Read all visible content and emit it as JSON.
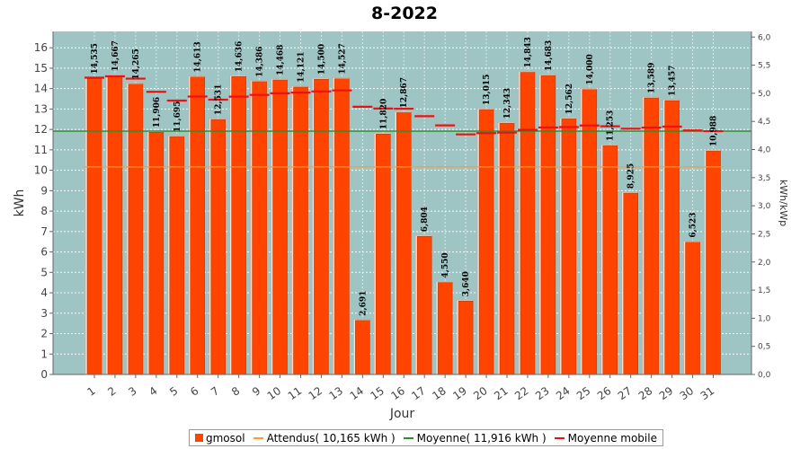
{
  "chart_data": {
    "type": "bar",
    "title": "8-2022",
    "xlabel": "Jour",
    "ylabel": "kWh",
    "y2label": "kWh/kWp",
    "ylim": [
      0,
      16.8
    ],
    "y2lim": [
      0,
      6.1
    ],
    "categories": [
      "1",
      "2",
      "3",
      "4",
      "5",
      "6",
      "7",
      "8",
      "9",
      "10",
      "11",
      "12",
      "13",
      "14",
      "15",
      "16",
      "17",
      "18",
      "19",
      "20",
      "21",
      "22",
      "23",
      "24",
      "25",
      "26",
      "27",
      "28",
      "29",
      "30",
      "31"
    ],
    "value_labels": [
      "14,535",
      "14,667",
      "14,265",
      "11,906",
      "11,695",
      "14,613",
      "12,531",
      "14,636",
      "14,386",
      "14,468",
      "14,121",
      "14,500",
      "14,527",
      "2,691",
      "11,820",
      "12,867",
      "6,804",
      "4,550",
      "3,640",
      "13,015",
      "12,343",
      "14,843",
      "14,683",
      "12,562",
      "14,000",
      "11,253",
      "8,925",
      "13,589",
      "13,457",
      "6,523",
      "10,988"
    ],
    "series": [
      {
        "name": "gmosol",
        "kind": "bar",
        "color": "#ff4400",
        "values": [
          14.535,
          14.667,
          14.265,
          11.906,
          11.695,
          14.613,
          12.531,
          14.636,
          14.386,
          14.468,
          14.121,
          14.5,
          14.527,
          2.691,
          11.82,
          12.867,
          6.804,
          4.55,
          3.64,
          13.015,
          12.343,
          14.843,
          14.683,
          12.562,
          14.0,
          11.253,
          8.925,
          13.589,
          13.457,
          6.523,
          10.988
        ]
      },
      {
        "name": "Attendus( 10,165 kWh )",
        "kind": "marker",
        "color": "#ff9933",
        "values": [
          10.165,
          10.165,
          10.165,
          10.165,
          10.165,
          10.165,
          10.165,
          10.165,
          10.165,
          10.165,
          10.165,
          10.165,
          10.165,
          10.165,
          10.165,
          10.165,
          10.165,
          10.165,
          10.165,
          10.165,
          10.165,
          10.165,
          10.165,
          10.165,
          10.165,
          10.165,
          10.165,
          10.165,
          10.165,
          10.165,
          10.165
        ]
      },
      {
        "name": "Moyenne( 11,916 kWh )",
        "kind": "hline",
        "color": "#2e8b2e",
        "value": 11.916
      },
      {
        "name": "Moyenne mobile",
        "kind": "marker",
        "color": "#ee1111",
        "values": [
          14.535,
          14.601,
          14.489,
          13.843,
          13.413,
          13.613,
          13.458,
          13.605,
          13.692,
          13.77,
          13.803,
          13.861,
          13.912,
          13.11,
          13.023,
          13.014,
          12.649,
          12.199,
          11.756,
          11.819,
          11.844,
          11.98,
          12.097,
          12.117,
          12.193,
          12.156,
          12.036,
          12.092,
          12.139,
          11.952,
          11.916
        ]
      }
    ],
    "xticks": [
      "1",
      "2",
      "3",
      "4",
      "5",
      "6",
      "7",
      "8",
      "9",
      "10",
      "11",
      "12",
      "13",
      "14",
      "15",
      "16",
      "17",
      "18",
      "19",
      "20",
      "21",
      "22",
      "23",
      "24",
      "25",
      "26",
      "27",
      "28",
      "29",
      "30",
      "31"
    ],
    "yticks": [
      "0",
      "1",
      "2",
      "3",
      "4",
      "5",
      "6",
      "7",
      "8",
      "9",
      "10",
      "11",
      "12",
      "13",
      "14",
      "15",
      "16"
    ],
    "y2ticks": [
      "0,0",
      "0,5",
      "1,0",
      "1,5",
      "2,0",
      "2,5",
      "3,0",
      "3,5",
      "4,0",
      "4,5",
      "5,0",
      "5,5",
      "6,0"
    ],
    "y2tick_values": [
      0,
      0.5,
      1.0,
      1.5,
      2.0,
      2.5,
      3.0,
      3.5,
      4.0,
      4.5,
      5.0,
      5.5,
      6.0
    ],
    "grid": true,
    "legend": "bottom",
    "plot_background": "#9ec4c4"
  },
  "legend": {
    "items": [
      {
        "label": "gmosol",
        "color": "#ff4400",
        "shape": "square"
      },
      {
        "label": "Attendus( 10,165 kWh )",
        "color": "#ff9933",
        "shape": "line"
      },
      {
        "label": "Moyenne( 11,916 kWh )",
        "color": "#2e8b2e",
        "shape": "line"
      },
      {
        "label": "Moyenne mobile",
        "color": "#ee1111",
        "shape": "line"
      }
    ]
  }
}
